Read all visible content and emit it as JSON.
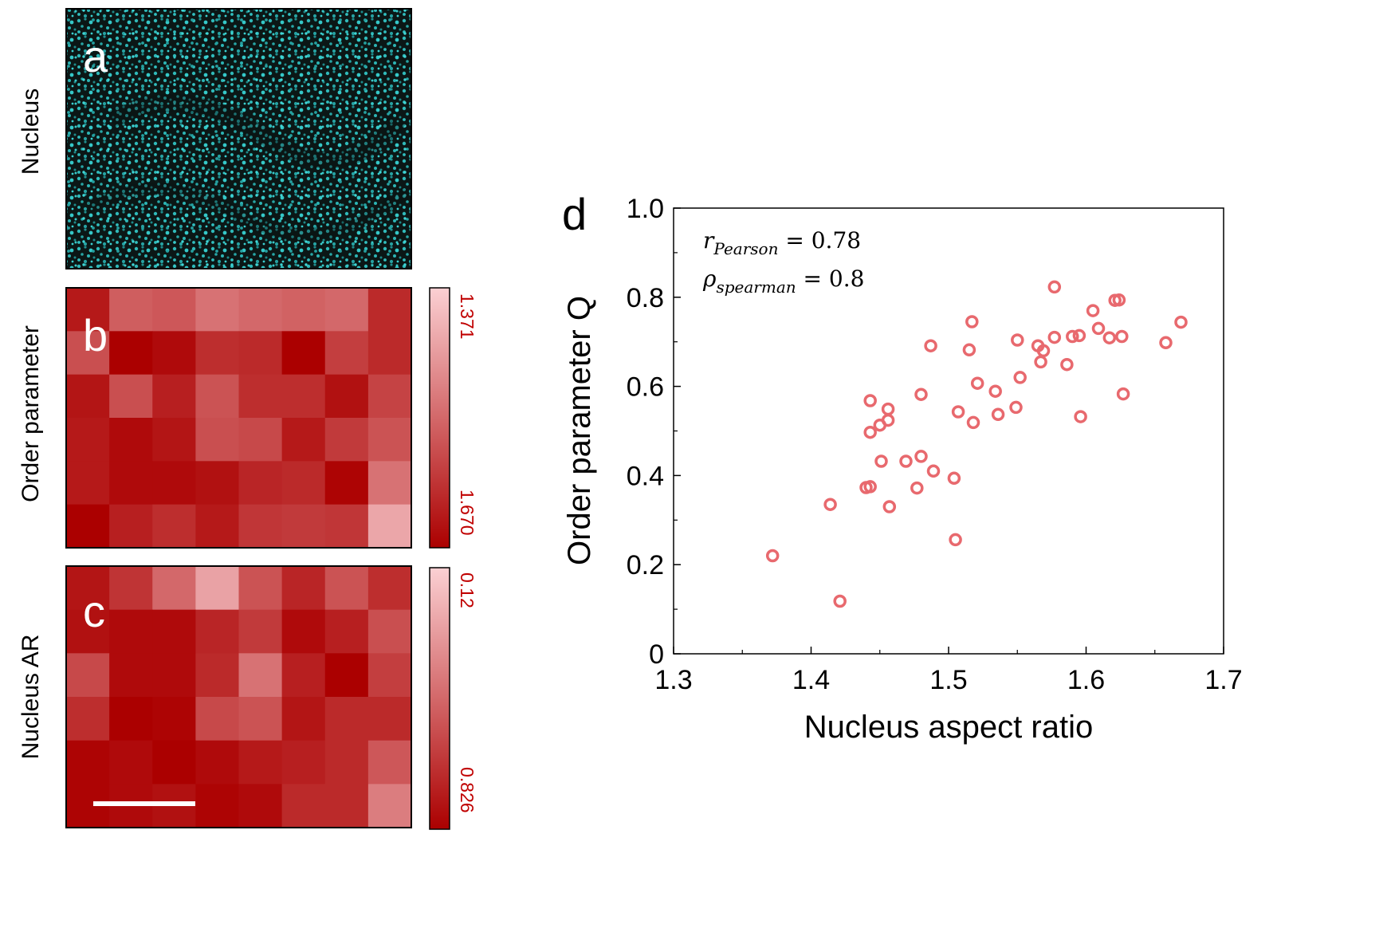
{
  "panels": {
    "a": {
      "label": "a",
      "ylabel": "Nucleus",
      "image_color": "#29c4c4"
    },
    "b": {
      "label": "b",
      "ylabel": "Order parameter",
      "colorbar_top": "1.371",
      "colorbar_bottom": "1.670",
      "grid": [
        [
          0.88,
          0.55,
          0.58,
          0.45,
          0.5,
          0.53,
          0.5,
          0.8
        ],
        [
          0.62,
          1.0,
          0.95,
          0.78,
          0.8,
          1.0,
          0.7,
          0.8
        ],
        [
          0.9,
          0.62,
          0.85,
          0.6,
          0.78,
          0.78,
          0.92,
          0.68
        ],
        [
          0.88,
          0.95,
          0.9,
          0.62,
          0.65,
          0.88,
          0.72,
          0.6
        ],
        [
          0.88,
          0.95,
          0.95,
          0.92,
          0.82,
          0.8,
          0.98,
          0.45
        ],
        [
          1.0,
          0.85,
          0.78,
          0.88,
          0.74,
          0.72,
          0.74,
          0.2
        ]
      ]
    },
    "c": {
      "label": "c",
      "ylabel": "Nucleus AR",
      "colorbar_top": "0.12",
      "colorbar_bottom": "0.826",
      "grid": [
        [
          0.9,
          0.75,
          0.5,
          0.22,
          0.6,
          0.82,
          0.6,
          0.78
        ],
        [
          0.92,
          0.95,
          0.95,
          0.82,
          0.72,
          0.95,
          0.85,
          0.62
        ],
        [
          0.65,
          0.95,
          0.95,
          0.8,
          0.45,
          0.85,
          1.0,
          0.7
        ],
        [
          0.78,
          1.0,
          0.98,
          0.65,
          0.6,
          0.9,
          0.8,
          0.8
        ],
        [
          0.98,
          0.95,
          1.0,
          0.95,
          0.88,
          0.85,
          0.8,
          0.58
        ],
        [
          0.98,
          0.95,
          0.92,
          0.98,
          0.95,
          0.8,
          0.8,
          0.4
        ]
      ],
      "scale_bar": true
    },
    "d": {
      "label": "d"
    }
  },
  "colors": {
    "heat_light": "#fbd0d3",
    "heat_dark": "#ab0000",
    "scatter": "#e8696e",
    "colorbar_text": "#c00000",
    "accent": "#29c4c4"
  },
  "chart_data": {
    "type": "scatter",
    "title": "",
    "xlabel": "Nucleus aspect ratio",
    "ylabel": "Order parameter Q",
    "xlim": [
      1.3,
      1.7
    ],
    "ylim": [
      0,
      1.0
    ],
    "xticks": [
      "1.3",
      "1.4",
      "1.5",
      "1.6",
      "1.7"
    ],
    "yticks": [
      "0",
      "0.2",
      "0.4",
      "0.6",
      "0.8",
      "1.0"
    ],
    "annotations": [
      {
        "symbol": "r",
        "subscript": "Pearson",
        "value": " = 0.78"
      },
      {
        "symbol": "ρ",
        "subscript": "spearman",
        "value": " = 0.8"
      }
    ],
    "points": [
      [
        1.372,
        0.22
      ],
      [
        1.414,
        0.335
      ],
      [
        1.421,
        0.118
      ],
      [
        1.44,
        0.373
      ],
      [
        1.443,
        0.375
      ],
      [
        1.443,
        0.568
      ],
      [
        1.443,
        0.497
      ],
      [
        1.45,
        0.513
      ],
      [
        1.451,
        0.432
      ],
      [
        1.456,
        0.524
      ],
      [
        1.456,
        0.549
      ],
      [
        1.457,
        0.33
      ],
      [
        1.469,
        0.432
      ],
      [
        1.477,
        0.372
      ],
      [
        1.48,
        0.443
      ],
      [
        1.48,
        0.582
      ],
      [
        1.487,
        0.691
      ],
      [
        1.489,
        0.41
      ],
      [
        1.504,
        0.394
      ],
      [
        1.505,
        0.256
      ],
      [
        1.507,
        0.543
      ],
      [
        1.515,
        0.682
      ],
      [
        1.517,
        0.745
      ],
      [
        1.518,
        0.519
      ],
      [
        1.521,
        0.607
      ],
      [
        1.534,
        0.589
      ],
      [
        1.536,
        0.537
      ],
      [
        1.549,
        0.553
      ],
      [
        1.55,
        0.704
      ],
      [
        1.552,
        0.62
      ],
      [
        1.565,
        0.691
      ],
      [
        1.567,
        0.655
      ],
      [
        1.569,
        0.68
      ],
      [
        1.577,
        0.823
      ],
      [
        1.577,
        0.71
      ],
      [
        1.586,
        0.649
      ],
      [
        1.59,
        0.712
      ],
      [
        1.595,
        0.714
      ],
      [
        1.596,
        0.532
      ],
      [
        1.605,
        0.77
      ],
      [
        1.609,
        0.73
      ],
      [
        1.617,
        0.709
      ],
      [
        1.621,
        0.793
      ],
      [
        1.624,
        0.794
      ],
      [
        1.626,
        0.712
      ],
      [
        1.627,
        0.583
      ],
      [
        1.658,
        0.698
      ],
      [
        1.669,
        0.744
      ]
    ]
  }
}
